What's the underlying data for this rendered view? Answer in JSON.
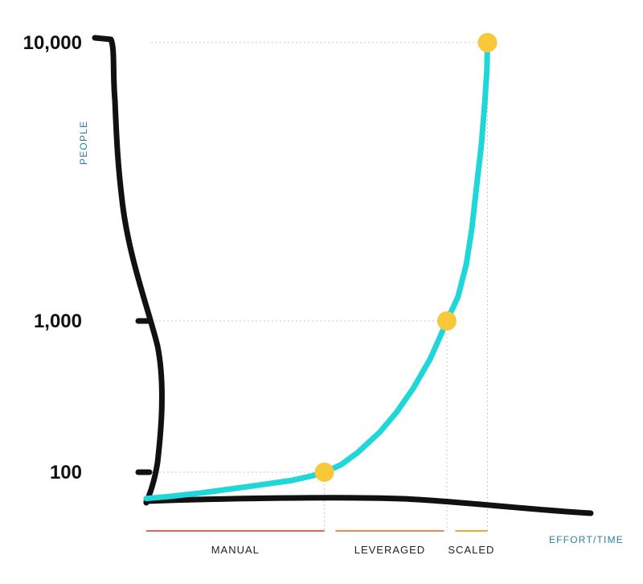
{
  "chart_data": {
    "type": "line",
    "scale": "log",
    "xlabel": "EFFORT/TIME",
    "ylabel": "PEOPLE",
    "y_ticks": [
      {
        "value": 100,
        "label": "100"
      },
      {
        "value": 1000,
        "label": "1,000"
      },
      {
        "value": 10000,
        "label": "10,000"
      }
    ],
    "series": [
      {
        "color": "#1fd6d8",
        "points": [
          {
            "x": 0,
            "y": 67
          },
          {
            "x": 4,
            "y": 69
          },
          {
            "x": 10,
            "y": 73
          },
          {
            "x": 18,
            "y": 80
          },
          {
            "x": 26,
            "y": 88
          },
          {
            "x": 30,
            "y": 95
          },
          {
            "x": 32,
            "y": 100
          },
          {
            "x": 35,
            "y": 112
          },
          {
            "x": 38,
            "y": 135
          },
          {
            "x": 42,
            "y": 185
          },
          {
            "x": 45,
            "y": 250
          },
          {
            "x": 48,
            "y": 360
          },
          {
            "x": 51,
            "y": 560
          },
          {
            "x": 53,
            "y": 820
          },
          {
            "x": 54,
            "y": 1000
          },
          {
            "x": 56,
            "y": 1220
          },
          {
            "x": 57.5,
            "y": 1600
          },
          {
            "x": 58.5,
            "y": 2150
          },
          {
            "x": 59.3,
            "y": 3000
          },
          {
            "x": 60.2,
            "y": 4300
          },
          {
            "x": 60.8,
            "y": 6000
          },
          {
            "x": 61.2,
            "y": 8000
          },
          {
            "x": 61.3,
            "y": 10000
          }
        ]
      }
    ],
    "milestones": [
      {
        "x": 32,
        "y": 100
      },
      {
        "x": 54,
        "y": 1000
      },
      {
        "x": 61.3,
        "y": 10000
      }
    ],
    "phases": [
      {
        "label": "MANUAL",
        "start": 0,
        "end": 32,
        "color": "#e8644f"
      },
      {
        "label": "LEVERAGED",
        "start": 34,
        "end": 53.5,
        "color": "#f08a4b"
      },
      {
        "label": "SCALED",
        "start": 55.5,
        "end": 61.3,
        "color": "#f0a830"
      }
    ],
    "xlim": [
      0,
      80
    ],
    "ylim": [
      65,
      10000
    ],
    "grid": "dotted guides from milestones",
    "colors": {
      "axis": "#111111",
      "guide": "#c8c8c8",
      "milestone": "#f8c83a",
      "axis_title": "#2b7f9a"
    }
  }
}
